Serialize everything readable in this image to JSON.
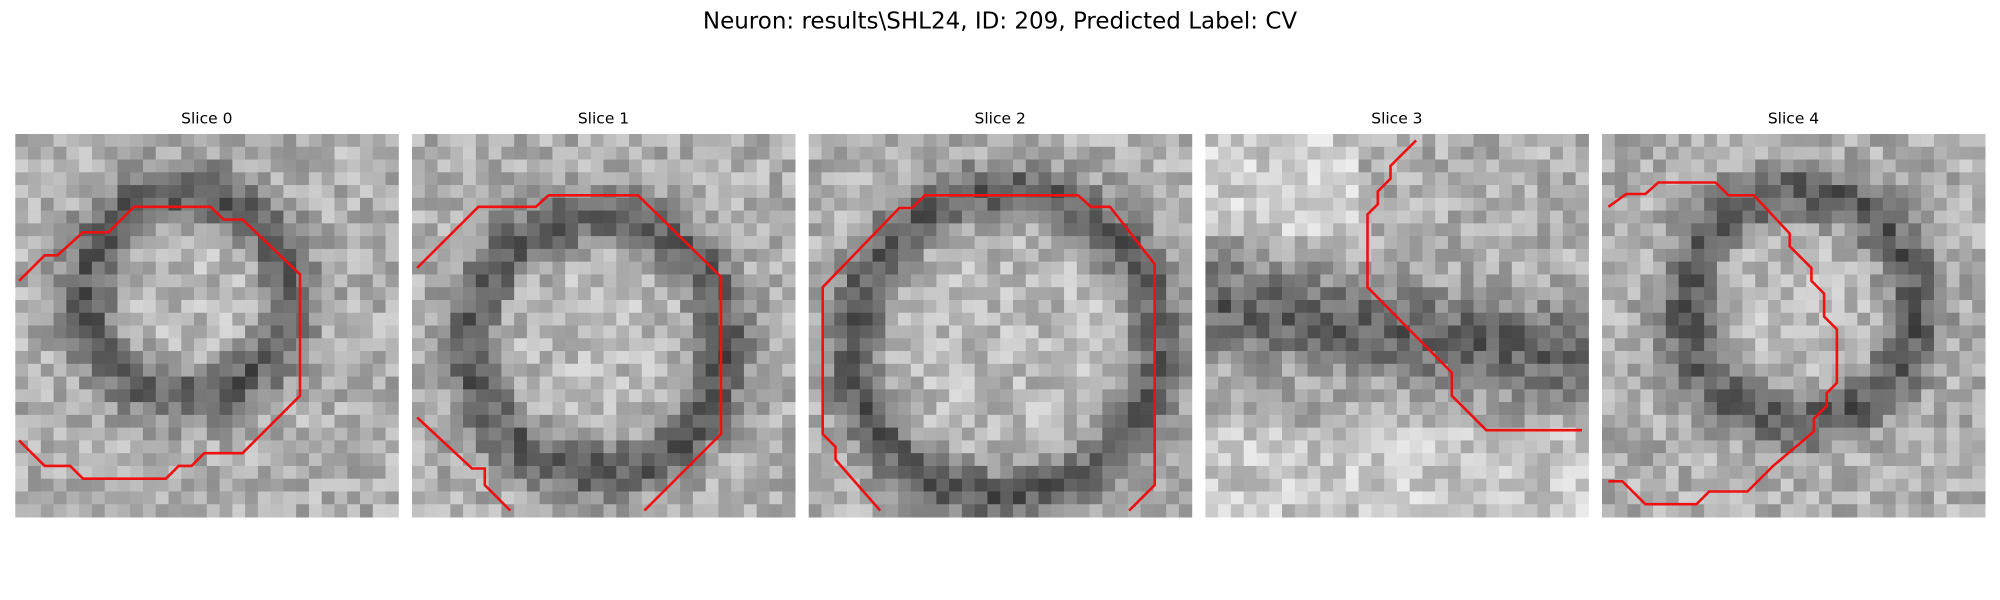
{
  "header": {
    "title": "Neuron: results\\SHL24, ID: 209, Predicted Label: CV"
  },
  "panels": [
    {
      "title": "Slice 0"
    },
    {
      "title": "Slice 1"
    },
    {
      "title": "Slice 2"
    },
    {
      "title": "Slice 3"
    },
    {
      "title": "Slice 4"
    }
  ]
}
